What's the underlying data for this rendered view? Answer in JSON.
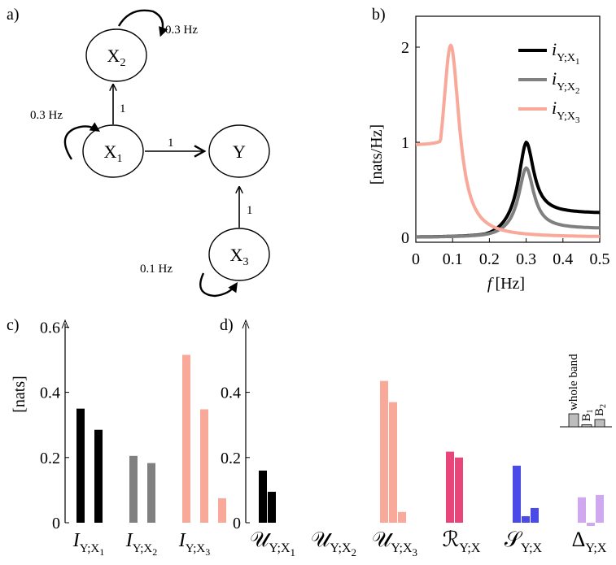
{
  "panels": {
    "a": "a)",
    "b": "b)",
    "c": "c)",
    "d": "d)"
  },
  "diagram": {
    "nodes": [
      {
        "id": "X2",
        "base": "X",
        "sub": "2"
      },
      {
        "id": "X1",
        "base": "X",
        "sub": "1"
      },
      {
        "id": "Y",
        "base": "Y",
        "sub": ""
      },
      {
        "id": "X3",
        "base": "X",
        "sub": "3"
      }
    ],
    "edge_weights": {
      "x1_x2": "1",
      "x1_y": "1",
      "x3_y": "1"
    },
    "self_loops": {
      "x2": "0.3 Hz",
      "x1": "0.3 Hz",
      "x3": "0.1 Hz"
    }
  },
  "chart_data": [
    {
      "type": "line",
      "panel": "b",
      "xlabel_italic": "f",
      "xlabel_unit": "[Hz]",
      "ylabel": "[nats/Hz]",
      "xlim": [
        0,
        0.5
      ],
      "ylim": [
        0,
        2.3
      ],
      "xticks": [
        "0",
        "0.1",
        "0.2",
        "0.3",
        "0.4",
        "0.5"
      ],
      "yticks": [
        "0",
        "1",
        "2"
      ],
      "legend_position": "top-right",
      "series": [
        {
          "name": "i",
          "sub": "Y;X",
          "subsub": "1",
          "color": "#000000",
          "peak": {
            "f0": 0.3,
            "height": 1.0,
            "width": 0.025,
            "baseline": 0.0,
            "tail": 0.25
          }
        },
        {
          "name": "i",
          "sub": "Y;X",
          "subsub": "2",
          "color": "#808080",
          "peak": {
            "f0": 0.3,
            "height": 0.73,
            "width": 0.025,
            "baseline": 0.0,
            "tail": 0.09
          }
        },
        {
          "name": "i",
          "sub": "Y;X",
          "subsub": "3",
          "color": "#f8a99a",
          "peak": {
            "f0": 0.095,
            "height": 2.02,
            "width": 0.028,
            "baseline": 0.97,
            "tail": 0.0
          }
        }
      ]
    },
    {
      "type": "bar",
      "panel": "c",
      "ylabel": "[nats]",
      "ylim": [
        0,
        0.6
      ],
      "yticks": [
        "0",
        "0.2",
        "0.4",
        "0.6"
      ],
      "bar_order": [
        "whole band",
        "B1",
        "B2"
      ],
      "groups": [
        {
          "label": "I",
          "sub": "Y;X",
          "subsub": "1",
          "color": "#000000",
          "values": [
            0.35,
            0.285,
            null
          ]
        },
        {
          "label": "I",
          "sub": "Y;X",
          "subsub": "2",
          "color": "#808080",
          "values": [
            0.205,
            0.183,
            null
          ]
        },
        {
          "label": "I",
          "sub": "Y;X",
          "subsub": "3",
          "color": "#f8a99a",
          "values": [
            0.515,
            0.348,
            0.075
          ]
        }
      ]
    },
    {
      "type": "bar",
      "panel": "d",
      "ylim": [
        -0.04,
        0.6
      ],
      "yticks": [
        "0",
        "0.2",
        "0.4"
      ],
      "bar_order": [
        "whole band",
        "B1",
        "B2"
      ],
      "groups": [
        {
          "label": "𝒰",
          "sub": "Y;X",
          "subsub": "1",
          "color": "#000000",
          "values": [
            0.16,
            0.095,
            null
          ]
        },
        {
          "label": "𝒰",
          "sub": "Y;X",
          "subsub": "2",
          "color": "#808080",
          "values": [
            null,
            null,
            null
          ]
        },
        {
          "label": "𝒰",
          "sub": "Y;X",
          "subsub": "3",
          "color": "#f8a99a",
          "values": [
            0.435,
            0.37,
            0.033
          ]
        },
        {
          "label": "ℛ",
          "sub": "Y;X",
          "subsub": "",
          "color": "#e8457a",
          "values": [
            0.218,
            0.2,
            null
          ]
        },
        {
          "label": "𝒮",
          "sub": "Y;X",
          "subsub": "",
          "color": "#4a4ae8",
          "values": [
            0.175,
            0.02,
            0.045
          ]
        },
        {
          "label": "Δ",
          "sub": "Y;X",
          "subsub": "",
          "color": "#cfa8ef",
          "values": [
            0.078,
            -0.01,
            0.085
          ]
        }
      ],
      "legend": {
        "labels": [
          "whole band",
          "B",
          "B"
        ],
        "subs": [
          "",
          "1",
          "2"
        ],
        "values": [
          0.032,
          0.005,
          0.018
        ],
        "color": "#bdbdbd"
      }
    }
  ]
}
